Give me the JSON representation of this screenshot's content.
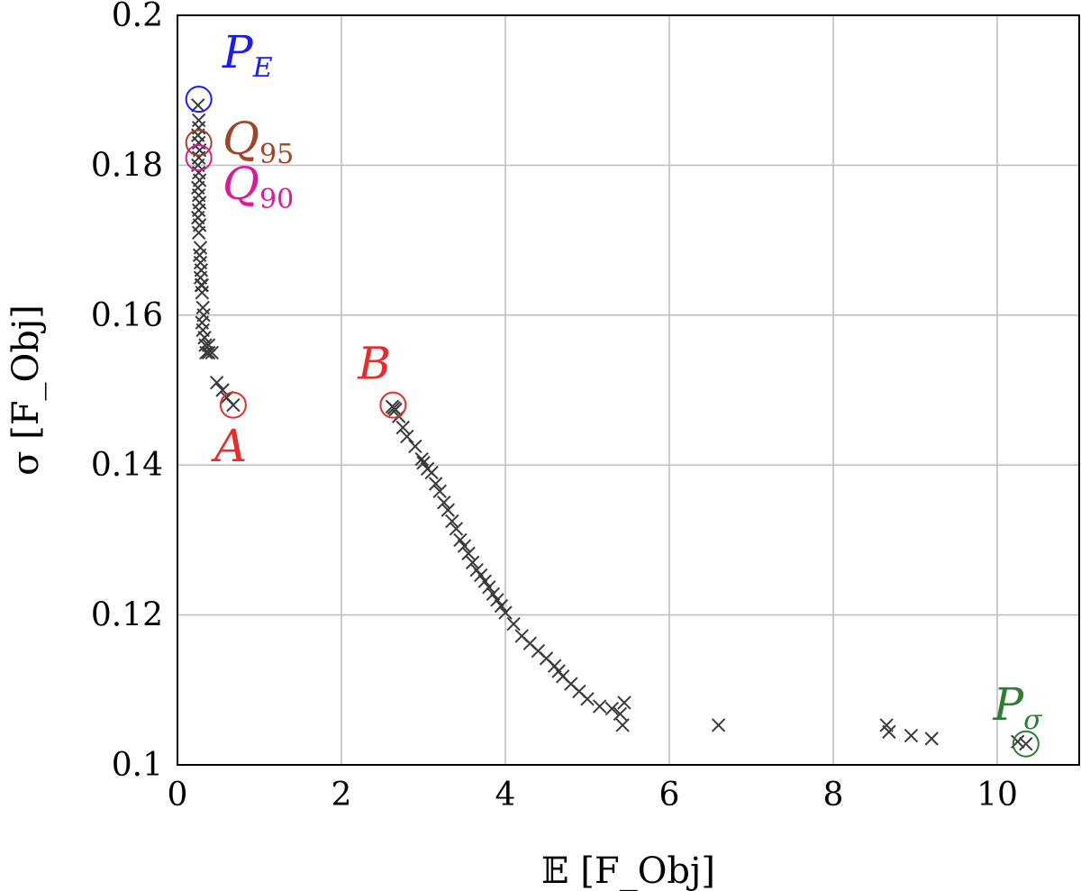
{
  "chart_data": {
    "type": "scatter",
    "title": "",
    "xlabel": "𝔼 [F_Obj]",
    "ylabel": "σ [F_Obj]",
    "xlim": [
      0,
      11
    ],
    "ylim": [
      0.1,
      0.2
    ],
    "xticks": [
      0,
      2,
      4,
      6,
      8,
      10
    ],
    "yticks": [
      0.1,
      0.12,
      0.14,
      0.16,
      0.18,
      0.2
    ],
    "xtick_labels": [
      "0",
      "2",
      "4",
      "6",
      "8",
      "10"
    ],
    "ytick_labels": [
      "0.1",
      "0.12",
      "0.14",
      "0.16",
      "0.18",
      "0.2"
    ],
    "grid": true,
    "marker_color": "#3a3a3a",
    "series": [
      {
        "marker": "x",
        "x": [
          0.25,
          0.26,
          0.26,
          0.25,
          0.26,
          0.27,
          0.26,
          0.25,
          0.26,
          0.27,
          0.25,
          0.26,
          0.27,
          0.26,
          0.25,
          0.27,
          0.26,
          0.28,
          0.27,
          0.28,
          0.29,
          0.28,
          0.3,
          0.29,
          0.3,
          0.31,
          0.32,
          0.3,
          0.31,
          0.33,
          0.34,
          0.35,
          0.38,
          0.38,
          0.42,
          0.48,
          0.55,
          0.6,
          0.68,
          2.62,
          2.64,
          2.66,
          2.7,
          2.75,
          2.8,
          2.9,
          2.98,
          3.0,
          3.05,
          3.1,
          3.15,
          3.2,
          3.25,
          3.3,
          3.35,
          3.4,
          3.45,
          3.5,
          3.55,
          3.6,
          3.65,
          3.7,
          3.75,
          3.8,
          3.85,
          3.9,
          3.95,
          4.0,
          4.1,
          4.2,
          4.3,
          4.4,
          4.5,
          4.6,
          4.65,
          4.7,
          4.8,
          4.9,
          5.0,
          5.15,
          5.3,
          5.4,
          5.45,
          5.43,
          6.6,
          8.65,
          8.68,
          8.95,
          9.2,
          10.25,
          10.35
        ],
        "y": [
          0.188,
          0.186,
          0.185,
          0.184,
          0.183,
          0.182,
          0.181,
          0.18,
          0.179,
          0.178,
          0.177,
          0.176,
          0.175,
          0.174,
          0.173,
          0.172,
          0.171,
          0.169,
          0.168,
          0.167,
          0.166,
          0.165,
          0.164,
          0.164,
          0.163,
          0.161,
          0.16,
          0.159,
          0.158,
          0.157,
          0.156,
          0.155,
          0.156,
          0.155,
          0.155,
          0.151,
          0.15,
          0.149,
          0.148,
          0.1478,
          0.1476,
          0.1474,
          0.1465,
          0.145,
          0.1438,
          0.1425,
          0.1408,
          0.1403,
          0.1395,
          0.139,
          0.1375,
          0.1365,
          0.135,
          0.134,
          0.1325,
          0.1315,
          0.13,
          0.1292,
          0.1282,
          0.127,
          0.126,
          0.1253,
          0.1245,
          0.1237,
          0.1228,
          0.122,
          0.1212,
          0.1203,
          0.1188,
          0.1172,
          0.1162,
          0.1152,
          0.1142,
          0.1132,
          0.1125,
          0.1118,
          0.1108,
          0.1098,
          0.1088,
          0.1078,
          0.1075,
          0.1068,
          0.1083,
          0.1053,
          0.1053,
          0.1053,
          0.1044,
          0.1039,
          0.1035,
          0.1031,
          0.1028
        ]
      }
    ],
    "annotations": [
      {
        "name": "P",
        "sub": "E",
        "color": "#1a1aff",
        "x": 0.26,
        "y": 0.1888,
        "label_x": 0.55,
        "label_y": 0.193
      },
      {
        "name": "Q",
        "sub": "95",
        "color": "#a0442a",
        "x": 0.26,
        "y": 0.183,
        "label_x": 0.55,
        "label_y": 0.1815
      },
      {
        "name": "Q",
        "sub": "90",
        "color": "#e0189a",
        "x": 0.26,
        "y": 0.181,
        "label_x": 0.55,
        "label_y": 0.1755
      },
      {
        "name": "A",
        "sub": "",
        "color": "#e82c2c",
        "x": 0.68,
        "y": 0.148,
        "label_x": 0.45,
        "label_y": 0.1405
      },
      {
        "name": "B",
        "sub": "",
        "color": "#e82c2c",
        "x": 2.63,
        "y": 0.148,
        "label_x": 2.2,
        "label_y": 0.1515
      },
      {
        "name": "P",
        "sub": "σ",
        "color": "#2e7d32",
        "x": 10.35,
        "y": 0.1028,
        "label_x": 9.95,
        "label_y": 0.106
      }
    ]
  }
}
